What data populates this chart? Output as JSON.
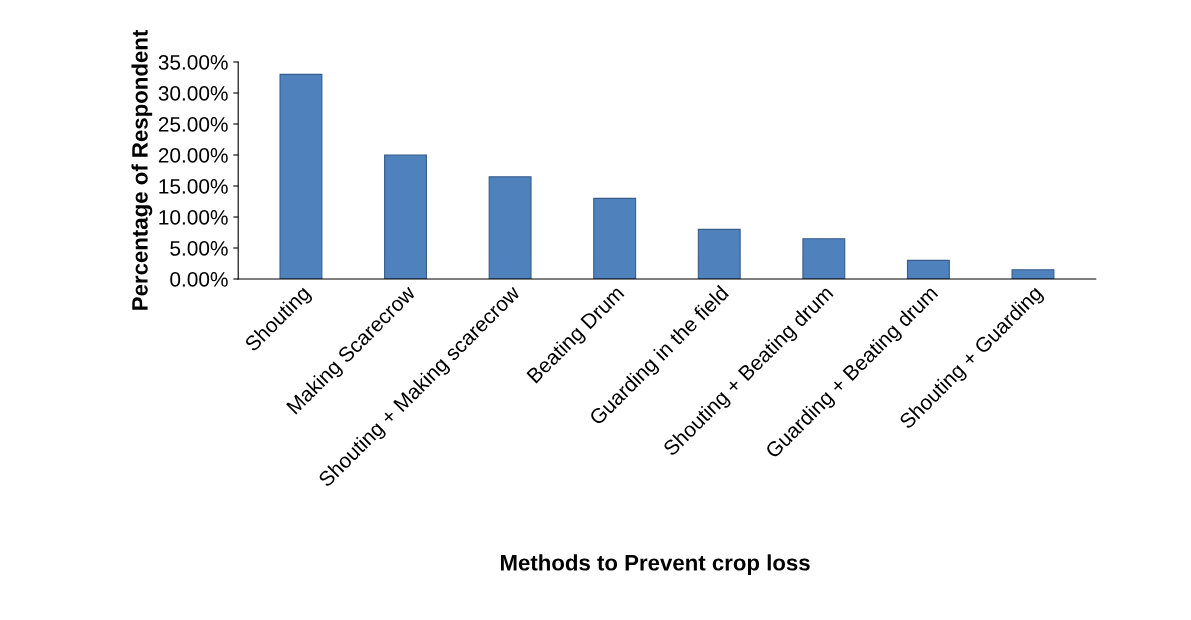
{
  "chart_data": {
    "type": "bar",
    "xlabel": "Methods to Prevent crop loss",
    "ylabel": "Percentage of Respondent",
    "categories": [
      "Shouting",
      "Making Scarecrow",
      "Shouting + Making scarecrow",
      "Beating Drum",
      "Guarding in the field",
      "Shouting + Beating drum",
      "Guarding + Beating drum",
      "Shouting + Guarding"
    ],
    "values": [
      33,
      20,
      16.5,
      13,
      8,
      6.5,
      3,
      1.5
    ],
    "color": "#4f81bd",
    "ylim": [
      0,
      35
    ],
    "yticks": [
      {
        "value": 0,
        "label": "0.00%"
      },
      {
        "value": 5,
        "label": "5.00%"
      },
      {
        "value": 10,
        "label": "10.00%"
      },
      {
        "value": 15,
        "label": "15.00%"
      },
      {
        "value": 20,
        "label": "20.00%"
      },
      {
        "value": 25,
        "label": "25.00%"
      },
      {
        "value": 30,
        "label": "30.00%"
      },
      {
        "value": 35,
        "label": "35.00%"
      }
    ],
    "grid": false
  }
}
